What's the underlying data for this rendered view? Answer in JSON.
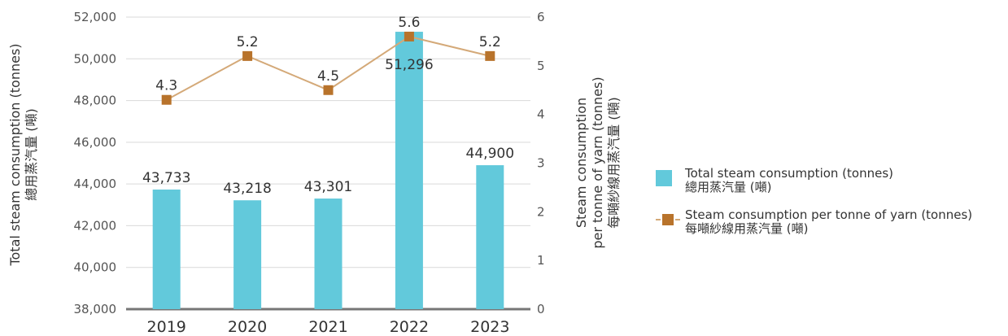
{
  "chart_data": {
    "type": "bar",
    "categories": [
      "2019",
      "2020",
      "2021",
      "2022",
      "2023"
    ],
    "series": [
      {
        "name": "Total steam consumption (tonnes)",
        "name_zh": "總用蒸汽量 (噸)",
        "type": "bar",
        "axis": "left",
        "values": [
          43733,
          43218,
          43301,
          51296,
          44900
        ],
        "labels": [
          "43,733",
          "43,218",
          "43,301",
          "51,296",
          "44,900"
        ],
        "color": "#62c9db"
      },
      {
        "name": "Steam consumption per tonne of yarn (tonnes)",
        "name_zh": "每噸紗線用蒸汽量 (噸)",
        "type": "line",
        "axis": "right",
        "values": [
          4.3,
          5.2,
          4.5,
          5.6,
          5.2
        ],
        "labels": [
          "4.3",
          "5.2",
          "4.5",
          "5.6",
          "5.2"
        ],
        "line_color": "#d4a978",
        "marker_color": "#b8732b"
      }
    ],
    "y_left": {
      "label": "Total steam consumption (tonnes)",
      "label_zh": "總用蒸汽量 (噸)",
      "ylim": [
        38000,
        52000
      ],
      "ticks": [
        "38,000",
        "40,000",
        "42,000",
        "44,000",
        "46,000",
        "48,000",
        "50,000",
        "52,000"
      ]
    },
    "y_right": {
      "label_line1": "Steam consumption",
      "label_line2": "per tonne of yarn (tonnes)",
      "label_zh": "每噸紗線用蒸汽量 (噸)",
      "ylim": [
        0,
        6
      ],
      "ticks": [
        "0",
        "1",
        "2",
        "3",
        "4",
        "5",
        "6"
      ]
    },
    "grid": true,
    "legend_position": "right"
  }
}
